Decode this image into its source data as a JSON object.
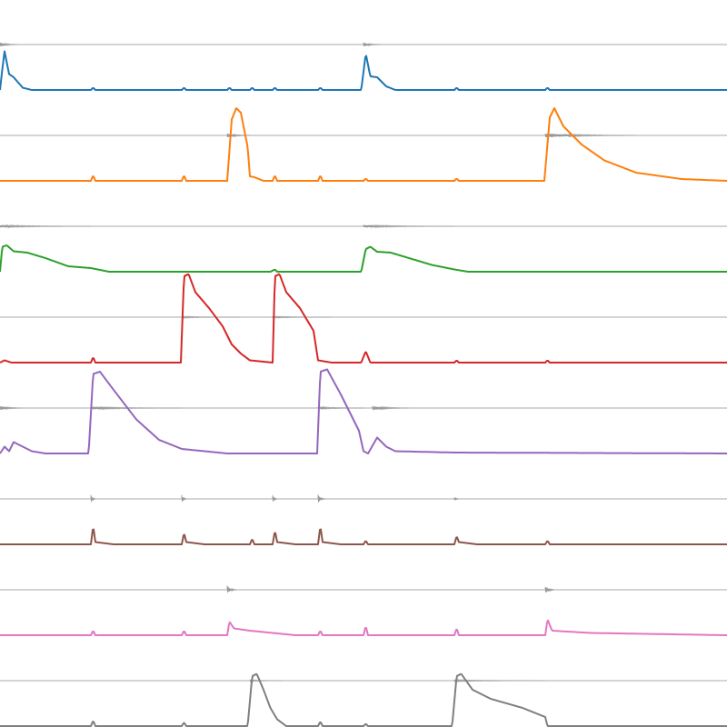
{
  "chart_data": {
    "type": "line",
    "grid": false,
    "legend": "none",
    "xlim": [
      0,
      16
    ],
    "ylim": [
      0,
      1
    ],
    "trace_color": "#999999",
    "tracks": [
      {
        "color": "#1f77b4",
        "envelope": [
          [
            0,
            0
          ],
          [
            0.05,
            0.45
          ],
          [
            0.1,
            0.85
          ],
          [
            0.2,
            0.35
          ],
          [
            0.3,
            0.28
          ],
          [
            0.5,
            0.05
          ],
          [
            0.7,
            0
          ],
          [
            2,
            0
          ],
          [
            2.05,
            0.05
          ],
          [
            2.1,
            0
          ],
          [
            4,
            0
          ],
          [
            4.05,
            0.05
          ],
          [
            4.1,
            0
          ],
          [
            5,
            0
          ],
          [
            5.05,
            0.05
          ],
          [
            5.1,
            0
          ],
          [
            5.5,
            0
          ],
          [
            5.55,
            0.05
          ],
          [
            5.6,
            0
          ],
          [
            6,
            0
          ],
          [
            6.05,
            0.05
          ],
          [
            6.1,
            0
          ],
          [
            7,
            0
          ],
          [
            7.05,
            0.05
          ],
          [
            7.1,
            0
          ],
          [
            7.95,
            0
          ],
          [
            8.05,
            0.8
          ],
          [
            8.15,
            0.3
          ],
          [
            8.3,
            0.28
          ],
          [
            8.5,
            0.08
          ],
          [
            8.7,
            0
          ],
          [
            10,
            0
          ],
          [
            10.05,
            0.05
          ],
          [
            10.1,
            0
          ],
          [
            12,
            0
          ],
          [
            12.05,
            0.05
          ],
          [
            12.1,
            0
          ],
          [
            16,
            0
          ]
        ],
        "bursts": [
          [
            0,
            0.05,
            0.4
          ],
          [
            8,
            0.05,
            0.4
          ]
        ]
      },
      {
        "color": "#ff7f0e",
        "envelope": [
          [
            0,
            0
          ],
          [
            2,
            0
          ],
          [
            2.05,
            0.12
          ],
          [
            2.1,
            0
          ],
          [
            4,
            0
          ],
          [
            4.05,
            0.12
          ],
          [
            4.1,
            0
          ],
          [
            5,
            0
          ],
          [
            5.1,
            1.35
          ],
          [
            5.2,
            1.6
          ],
          [
            5.3,
            1.5
          ],
          [
            5.45,
            0.75
          ],
          [
            5.5,
            0.1
          ],
          [
            5.6,
            0.08
          ],
          [
            5.8,
            0
          ],
          [
            6,
            0
          ],
          [
            6.05,
            0.12
          ],
          [
            6.1,
            0
          ],
          [
            7,
            0
          ],
          [
            7.05,
            0.12
          ],
          [
            7.1,
            0
          ],
          [
            8,
            0
          ],
          [
            8.05,
            0.05
          ],
          [
            8.1,
            0
          ],
          [
            10,
            0
          ],
          [
            10.05,
            0.05
          ],
          [
            10.1,
            0
          ],
          [
            11.98,
            0
          ],
          [
            12.1,
            1.4
          ],
          [
            12.2,
            1.6
          ],
          [
            12.4,
            1.2
          ],
          [
            12.8,
            0.8
          ],
          [
            13.3,
            0.45
          ],
          [
            14,
            0.18
          ],
          [
            15,
            0.04
          ],
          [
            16,
            0
          ]
        ],
        "bursts": [
          [
            5,
            0.05,
            0.5
          ],
          [
            12,
            0.05,
            2
          ]
        ]
      },
      {
        "color": "#2ca02c",
        "envelope": [
          [
            0,
            0
          ],
          [
            0.05,
            0.55
          ],
          [
            0.15,
            0.58
          ],
          [
            0.3,
            0.45
          ],
          [
            0.6,
            0.42
          ],
          [
            1,
            0.3
          ],
          [
            1.5,
            0.12
          ],
          [
            2,
            0.08
          ],
          [
            2.4,
            0
          ],
          [
            5.95,
            0
          ],
          [
            6.05,
            0.05
          ],
          [
            6.1,
            0
          ],
          [
            7.95,
            0
          ],
          [
            8.05,
            0.5
          ],
          [
            8.15,
            0.55
          ],
          [
            8.3,
            0.44
          ],
          [
            8.6,
            0.42
          ],
          [
            9,
            0.3
          ],
          [
            9.5,
            0.15
          ],
          [
            10,
            0.05
          ],
          [
            10.3,
            0
          ],
          [
            16,
            0
          ]
        ],
        "bursts": [
          [
            0,
            0.03,
            2
          ],
          [
            8,
            0.03,
            2
          ]
        ]
      },
      {
        "color": "#d62728",
        "envelope": [
          [
            0,
            0
          ],
          [
            0.1,
            0.05
          ],
          [
            0.25,
            0
          ],
          [
            2,
            0
          ],
          [
            2.05,
            0.12
          ],
          [
            2.1,
            0
          ],
          [
            3.98,
            0
          ],
          [
            4.05,
            1.9
          ],
          [
            4.15,
            1.95
          ],
          [
            4.3,
            1.55
          ],
          [
            4.6,
            1.2
          ],
          [
            4.9,
            0.8
          ],
          [
            5.1,
            0.4
          ],
          [
            5.3,
            0.2
          ],
          [
            5.5,
            0.05
          ],
          [
            6,
            0
          ],
          [
            6.05,
            1.9
          ],
          [
            6.15,
            1.95
          ],
          [
            6.3,
            1.55
          ],
          [
            6.6,
            1.2
          ],
          [
            6.9,
            0.7
          ],
          [
            7,
            0.05
          ],
          [
            7.3,
            0
          ],
          [
            7.95,
            0
          ],
          [
            8.05,
            0.25
          ],
          [
            8.15,
            0
          ],
          [
            10,
            0
          ],
          [
            10.05,
            0.05
          ],
          [
            10.1,
            0
          ],
          [
            12,
            0
          ],
          [
            12.05,
            0.05
          ],
          [
            12.1,
            0
          ],
          [
            16,
            0
          ]
        ],
        "bursts": [
          [
            4,
            0.02,
            1.3
          ],
          [
            6,
            0.02,
            1.3
          ]
        ]
      },
      {
        "color": "#9467bd",
        "envelope": [
          [
            0,
            0
          ],
          [
            0.1,
            0.15
          ],
          [
            0.2,
            0.05
          ],
          [
            0.3,
            0.25
          ],
          [
            0.5,
            0.15
          ],
          [
            0.7,
            0.05
          ],
          [
            1,
            0
          ],
          [
            1.95,
            0
          ],
          [
            2.05,
            1.75
          ],
          [
            2.2,
            1.8
          ],
          [
            2.5,
            1.4
          ],
          [
            3,
            0.75
          ],
          [
            3.5,
            0.3
          ],
          [
            4,
            0.1
          ],
          [
            5,
            0
          ],
          [
            6.98,
            0
          ],
          [
            7.05,
            1.8
          ],
          [
            7.2,
            1.85
          ],
          [
            7.5,
            1.3
          ],
          [
            7.9,
            0.5
          ],
          [
            8,
            0.05
          ],
          [
            8.1,
            0
          ],
          [
            8.3,
            0.35
          ],
          [
            8.5,
            0.15
          ],
          [
            8.7,
            0.05
          ],
          [
            10,
            0.02
          ],
          [
            16,
            0
          ]
        ],
        "bursts": [
          [
            0,
            0.05,
            0.5
          ],
          [
            2,
            0.03,
            2
          ],
          [
            7,
            0.03,
            1
          ],
          [
            8.2,
            0.05,
            0.8
          ]
        ]
      },
      {
        "color": "#8c564b",
        "envelope": [
          [
            0,
            0
          ],
          [
            2,
            0
          ],
          [
            2.05,
            0.4
          ],
          [
            2.1,
            0.05
          ],
          [
            2.5,
            0
          ],
          [
            4,
            0
          ],
          [
            4.05,
            0.25
          ],
          [
            4.1,
            0.05
          ],
          [
            4.5,
            0
          ],
          [
            5.5,
            0
          ],
          [
            5.55,
            0.12
          ],
          [
            5.6,
            0
          ],
          [
            6,
            0
          ],
          [
            6.05,
            0.3
          ],
          [
            6.1,
            0.05
          ],
          [
            6.5,
            0
          ],
          [
            7,
            0
          ],
          [
            7.05,
            0.4
          ],
          [
            7.1,
            0.05
          ],
          [
            7.5,
            0
          ],
          [
            8,
            0
          ],
          [
            8.05,
            0.08
          ],
          [
            8.1,
            0
          ],
          [
            10,
            0
          ],
          [
            10.05,
            0.18
          ],
          [
            10.1,
            0.05
          ],
          [
            10.5,
            0
          ],
          [
            12,
            0
          ],
          [
            12.05,
            0.08
          ],
          [
            12.1,
            0
          ],
          [
            16,
            0
          ]
        ],
        "bursts": [
          [
            2,
            0.1,
            0.1
          ],
          [
            4,
            0.1,
            0.1
          ],
          [
            6,
            0.1,
            0.1
          ],
          [
            7,
            0.1,
            0.15
          ],
          [
            10,
            0.05,
            0.1
          ]
        ]
      },
      {
        "color": "#e377c2",
        "envelope": [
          [
            0,
            0
          ],
          [
            2,
            0
          ],
          [
            2.05,
            0.1
          ],
          [
            2.1,
            0
          ],
          [
            4,
            0
          ],
          [
            4.05,
            0.1
          ],
          [
            4.1,
            0
          ],
          [
            5,
            0
          ],
          [
            5.05,
            0.3
          ],
          [
            5.15,
            0.15
          ],
          [
            5.5,
            0.1
          ],
          [
            6,
            0.05
          ],
          [
            6.5,
            0
          ],
          [
            7,
            0
          ],
          [
            7.05,
            0.1
          ],
          [
            7.1,
            0
          ],
          [
            8,
            0
          ],
          [
            8.05,
            0.2
          ],
          [
            8.1,
            0
          ],
          [
            10,
            0
          ],
          [
            10.05,
            0.15
          ],
          [
            10.1,
            0
          ],
          [
            12,
            0
          ],
          [
            12.05,
            0.35
          ],
          [
            12.15,
            0.1
          ],
          [
            13,
            0.05
          ],
          [
            16,
            0
          ]
        ],
        "bursts": [
          [
            5,
            0.1,
            0.2
          ],
          [
            12,
            0.1,
            0.2
          ]
        ]
      },
      {
        "color": "#7f7f7f",
        "envelope": [
          [
            0,
            0
          ],
          [
            2,
            0
          ],
          [
            2.05,
            0.12
          ],
          [
            2.1,
            0
          ],
          [
            4,
            0
          ],
          [
            4.05,
            0.08
          ],
          [
            4.1,
            0
          ],
          [
            5.45,
            0
          ],
          [
            5.55,
            1.1
          ],
          [
            5.65,
            1.15
          ],
          [
            5.8,
            0.8
          ],
          [
            5.95,
            0.4
          ],
          [
            6.1,
            0.15
          ],
          [
            6.3,
            0
          ],
          [
            7,
            0
          ],
          [
            7.05,
            0.1
          ],
          [
            7.1,
            0
          ],
          [
            8,
            0
          ],
          [
            8.05,
            0.05
          ],
          [
            8.1,
            0
          ],
          [
            9.95,
            0
          ],
          [
            10.05,
            1.1
          ],
          [
            10.15,
            1.15
          ],
          [
            10.4,
            0.8
          ],
          [
            10.8,
            0.6
          ],
          [
            11.5,
            0.4
          ],
          [
            12,
            0.2
          ],
          [
            12.05,
            0
          ],
          [
            16,
            0
          ]
        ],
        "bursts": [
          [
            5.5,
            0.02,
            0.7
          ],
          [
            10,
            0.02,
            2
          ]
        ]
      }
    ]
  }
}
